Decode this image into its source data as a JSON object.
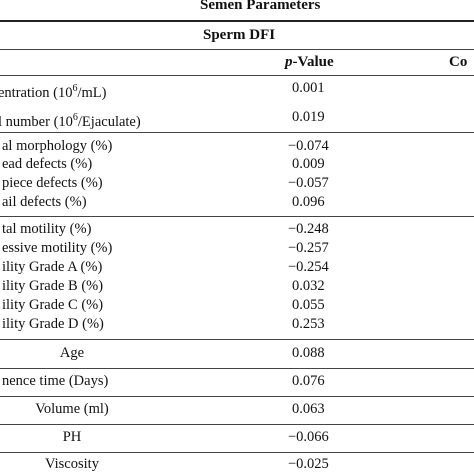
{
  "table": {
    "title": "Semen Parameters",
    "subheader": "Sperm DFI",
    "columns": {
      "p_label": "p",
      "value_label": "-Value",
      "co_label": "Co"
    },
    "groups": [
      {
        "rows": [
          {
            "label_pre": "entration (10",
            "sup": "6",
            "label_post": "/mL)",
            "value": "0.001"
          },
          {
            "label_pre": "l number (10",
            "sup": "6",
            "label_post": "/Ejaculate)",
            "value": "0.019"
          }
        ]
      },
      {
        "rows": [
          {
            "label": "al morphology (%)",
            "value": "−0.074"
          },
          {
            "label": "ead defects (%)",
            "value": "0.009"
          },
          {
            "label": "piece defects (%)",
            "value": "−0.057"
          },
          {
            "label": "ail defects (%)",
            "value": "0.096"
          }
        ]
      },
      {
        "rows": [
          {
            "label": "tal motility (%)",
            "value": "−0.248"
          },
          {
            "label": "essive motility (%)",
            "value": "−0.257"
          },
          {
            "label": "ility Grade A (%)",
            "value": "−0.254"
          },
          {
            "label": "ility Grade B (%)",
            "value": "0.032"
          },
          {
            "label": "ility Grade C (%)",
            "value": "0.055"
          },
          {
            "label": "ility Grade D (%)",
            "value": "0.253"
          }
        ]
      },
      {
        "rows": [
          {
            "label": "Age",
            "value": "0.088"
          }
        ]
      },
      {
        "rows": [
          {
            "label": "nence time (Days)",
            "value": "0.076"
          }
        ]
      },
      {
        "rows": [
          {
            "label": "Volume (ml)",
            "value": "0.063"
          }
        ]
      },
      {
        "rows": [
          {
            "label": "PH",
            "value": "−0.066"
          }
        ]
      },
      {
        "rows": [
          {
            "label": "Viscosity",
            "value": "−0.025"
          }
        ]
      }
    ]
  }
}
